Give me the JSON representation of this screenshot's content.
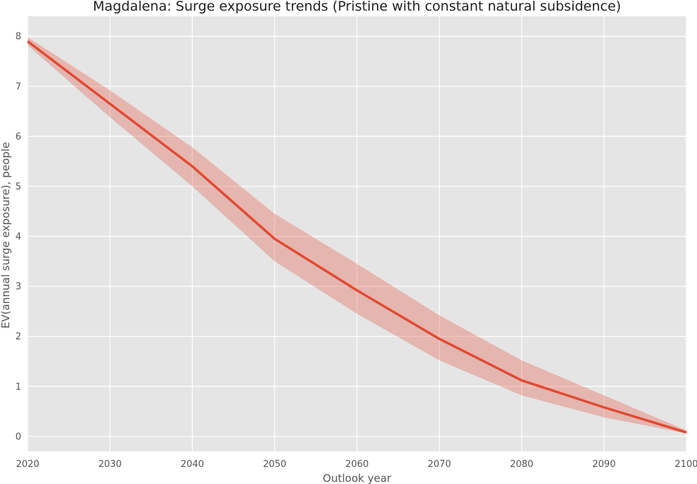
{
  "chart_data": {
    "type": "line",
    "title": "Magdalena: Surge exposure trends (Pristine with constant natural subsidence)",
    "xlabel": "Outlook year",
    "ylabel": "EV(annual surge exposure), people",
    "xlim": [
      2020,
      2100
    ],
    "ylim": [
      -0.3,
      8.4
    ],
    "xticks": [
      2020,
      2030,
      2040,
      2050,
      2060,
      2070,
      2080,
      2090,
      2100
    ],
    "yticks": [
      0,
      1,
      2,
      3,
      4,
      5,
      6,
      7,
      8
    ],
    "grid": true,
    "background_color": "#e5e5e5",
    "line_color": "#e24a33",
    "band_color": "#e24a33",
    "series": [
      {
        "name": "Pristine with constant natural subsidence",
        "x": [
          2020,
          2030,
          2040,
          2050,
          2060,
          2070,
          2080,
          2090,
          2100
        ],
        "y": [
          7.9,
          6.65,
          5.4,
          3.95,
          2.92,
          1.95,
          1.12,
          0.58,
          0.08
        ],
        "lower": [
          7.82,
          6.38,
          5.0,
          3.5,
          2.45,
          1.52,
          0.82,
          0.38,
          0.06
        ],
        "upper": [
          7.98,
          6.92,
          5.78,
          4.45,
          3.45,
          2.42,
          1.52,
          0.82,
          0.12
        ]
      }
    ]
  }
}
